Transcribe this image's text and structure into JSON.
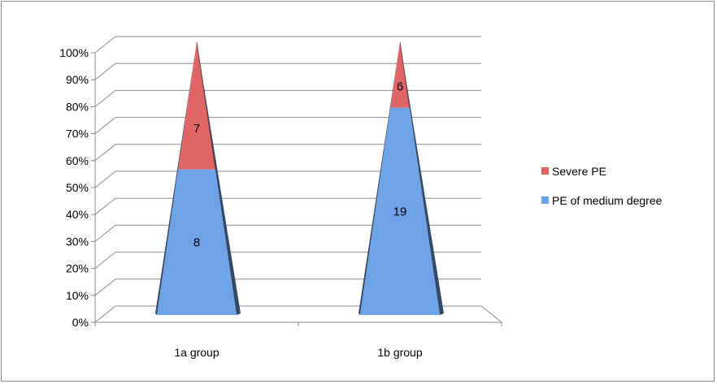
{
  "chart_data": {
    "type": "bar",
    "subtype": "100% stacked 3-D pyramid column",
    "title": "",
    "xlabel": "",
    "ylabel": "",
    "categories": [
      "1a group",
      "1b group"
    ],
    "series": [
      {
        "name": "PE of medium degree",
        "values": [
          8,
          19
        ],
        "color": "#6fa3e8"
      },
      {
        "name": "Severe PE",
        "values": [
          7,
          6
        ],
        "color": "#e06666"
      }
    ],
    "y_ticks": [
      "0%",
      "10%",
      "20%",
      "30%",
      "40%",
      "50%",
      "60%",
      "70%",
      "80%",
      "90%",
      "100%"
    ],
    "ylim": [
      0,
      100
    ],
    "grid": true,
    "legend": {
      "position": "right",
      "order": [
        "Severe PE",
        "PE of medium degree"
      ]
    }
  }
}
